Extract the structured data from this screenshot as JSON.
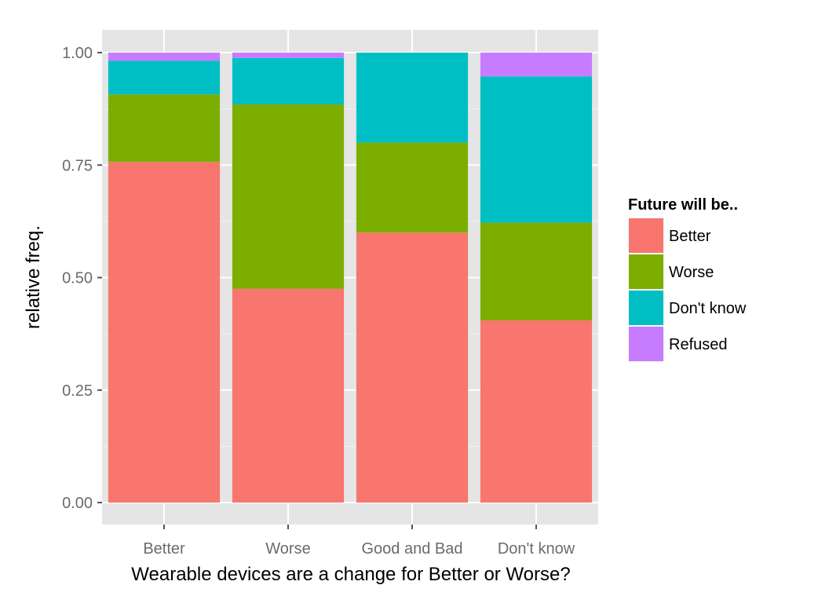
{
  "chart_data": {
    "type": "bar",
    "stacked": true,
    "position": "fill",
    "categories": [
      "Better",
      "Worse",
      "Good and Bad",
      "Don't know"
    ],
    "series": [
      {
        "name": "Better",
        "color": "#F8766D",
        "values": [
          0.757,
          0.475,
          0.6,
          0.405
        ]
      },
      {
        "name": "Worse",
        "color": "#7CAE00",
        "values": [
          0.15,
          0.41,
          0.2,
          0.217
        ]
      },
      {
        "name": "Don't know",
        "color": "#00BFC4",
        "values": [
          0.075,
          0.103,
          0.2,
          0.325
        ]
      },
      {
        "name": "Refused",
        "color": "#C77CFF",
        "values": [
          0.018,
          0.012,
          0.0,
          0.053
        ]
      }
    ],
    "xlabel": "Wearable devices are a change for Better or Worse?",
    "ylabel": "relative freq.",
    "ylim": [
      0,
      1
    ],
    "yticks": [
      "0.00",
      "0.25",
      "0.50",
      "0.75",
      "1.00"
    ],
    "ytick_values": [
      0,
      0.25,
      0.5,
      0.75,
      1.0
    ],
    "grid": true,
    "legend": {
      "title": "Future will be..",
      "position": "right",
      "entries": [
        "Better",
        "Worse",
        "Don't know",
        "Refused"
      ]
    }
  }
}
